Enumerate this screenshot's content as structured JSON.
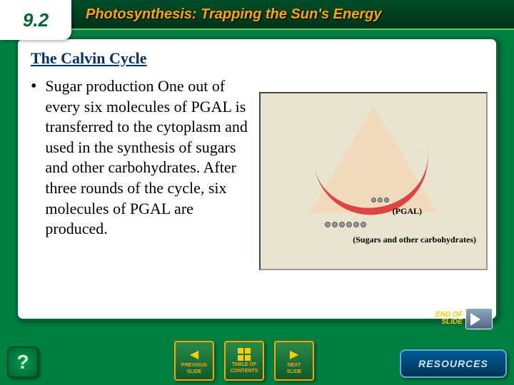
{
  "header": {
    "section_number": "9.2",
    "title": "Photosynthesis: Trapping the Sun's Energy",
    "accent_color": "#ffa500",
    "bg_dark": "#003319"
  },
  "slide": {
    "title": "The Calvin Cycle",
    "title_color": "#003366",
    "bullet": "Sugar production One out of every six molecules of PGAL is transferred to the cytoplasm and used in the synthesis of sugars and other carbohydrates. After three rounds of the cycle, six molecules of PGAL are produced.",
    "text_fontsize": 22
  },
  "diagram": {
    "pgal_label": "(PGAL)",
    "sugars_label": "(Sugars and other carbohydrates)",
    "bg_color": "#e8e4d0",
    "arc_color": "#d44444",
    "pyramid_fill": "rgba(255,200,150,0.35)",
    "pgal_dots": 3,
    "sugar_dots": 6
  },
  "footer": {
    "help_label": "?",
    "nav": {
      "prev_top": "PREVIOUS",
      "prev_bottom": "SLIDE",
      "contents_top": "TABLE OF",
      "contents_bottom": "CONTENTS",
      "next_top": "NEXT",
      "next_bottom": "SLIDE"
    },
    "end_top": "END OF",
    "end_bottom": "SLIDE",
    "resources": "RESOURCES",
    "nav_border": "#ffa500",
    "resources_bg": "#004d80"
  },
  "theme": {
    "page_bg": "#008040",
    "panel_bg": "#ffffff",
    "panel_border": "#006633"
  }
}
